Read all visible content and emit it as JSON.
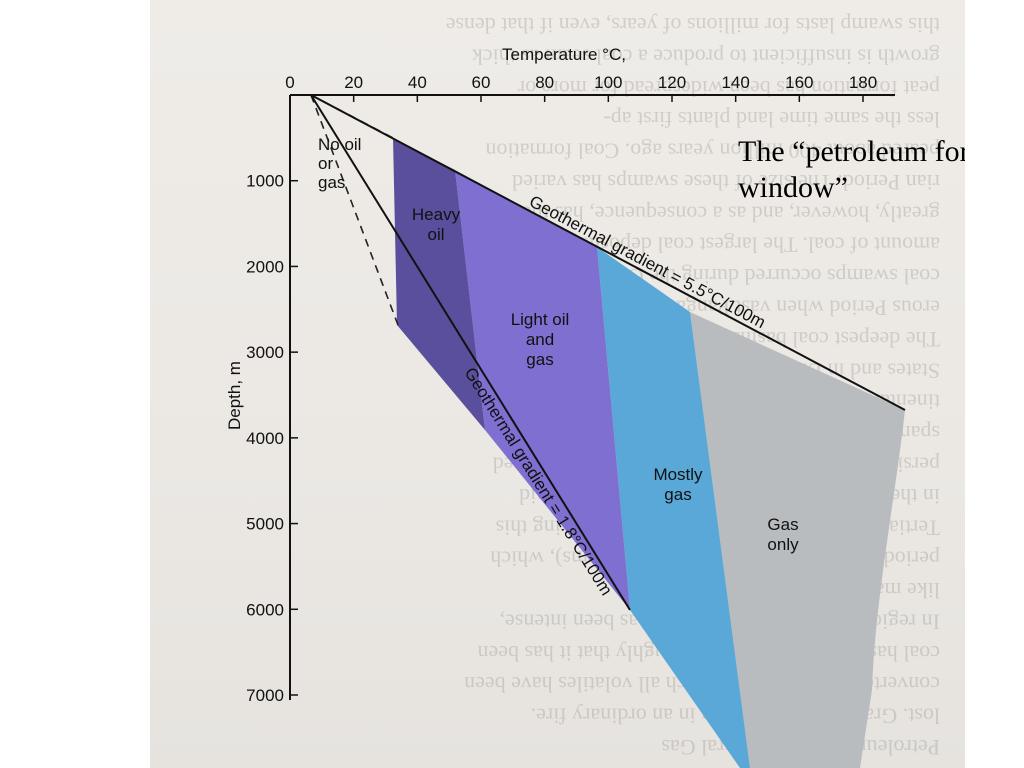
{
  "caption": "The “petroleum formation window”",
  "temperature_axis": {
    "title": "Temperature °C,",
    "ticks": [
      "0",
      "20",
      "40",
      "60",
      "80",
      "100",
      "120",
      "140",
      "160",
      "180"
    ]
  },
  "depth_axis": {
    "title": "Depth, m",
    "ticks": [
      "1000",
      "2000",
      "3000",
      "4000",
      "5000",
      "6000",
      "7000"
    ]
  },
  "zones": {
    "no_oil": [
      "No oil",
      "or",
      "gas"
    ],
    "heavy_oil": [
      "Heavy",
      "oil"
    ],
    "light_oil": [
      "Light oil",
      "and",
      "gas"
    ],
    "mostly_gas": [
      "Mostly",
      "gas"
    ],
    "gas_only": [
      "Gas",
      "only"
    ]
  },
  "gradients": {
    "high": "Geothermal gradient = 5.5°C/100m",
    "low": "Geothermal gradient = 1.8°C/100m"
  },
  "colors": {
    "heavy_oil": "#5a4f9c",
    "light_oil": "#7e6fd0",
    "mostly_gas": "#5aa8d8",
    "gas_only": "#b9bcbf"
  },
  "background_text": [
    "this swamp lasts for millions of years, even if that dense",
    "growth is insufficient to produce a coal seam as thick",
    "peat formation has been widespread for more or",
    "less the same time land plants first ap-",
    "peared about 400 million years ago. Coal formation",
    "rian Period. The size of these swamps has varied",
    "greatly, however, and as a consequence, has the",
    "amount of coal. The largest coal deposits",
    "coal swamps occurred during the Carbonif-",
    "erous Period when vast Pangaea formed.",
    "The deepest coal basins lay in the eastern United",
    "States and in Europe, on the plains of con-",
    "tinental swamps with seed-bearing trees",
    "spanning that period of coal deposition",
    "persisted through the Triassic Period but continued",
    "in the early Tertiary and continued until the mid",
    "Tertiary. The plants in the coal swamps during this",
    "period were flowering plants (angiosperms), which",
    "like many trees today.",
    "In regions where metamorphism has been intense,",
    "coal has been changed so thoroughly that it has been",
    "converted to graphite, in which all volatiles have been",
    "lost. Graphite will not burn in an ordinary fire.",
    "Petroleum: Oil and Natural Gas"
  ]
}
